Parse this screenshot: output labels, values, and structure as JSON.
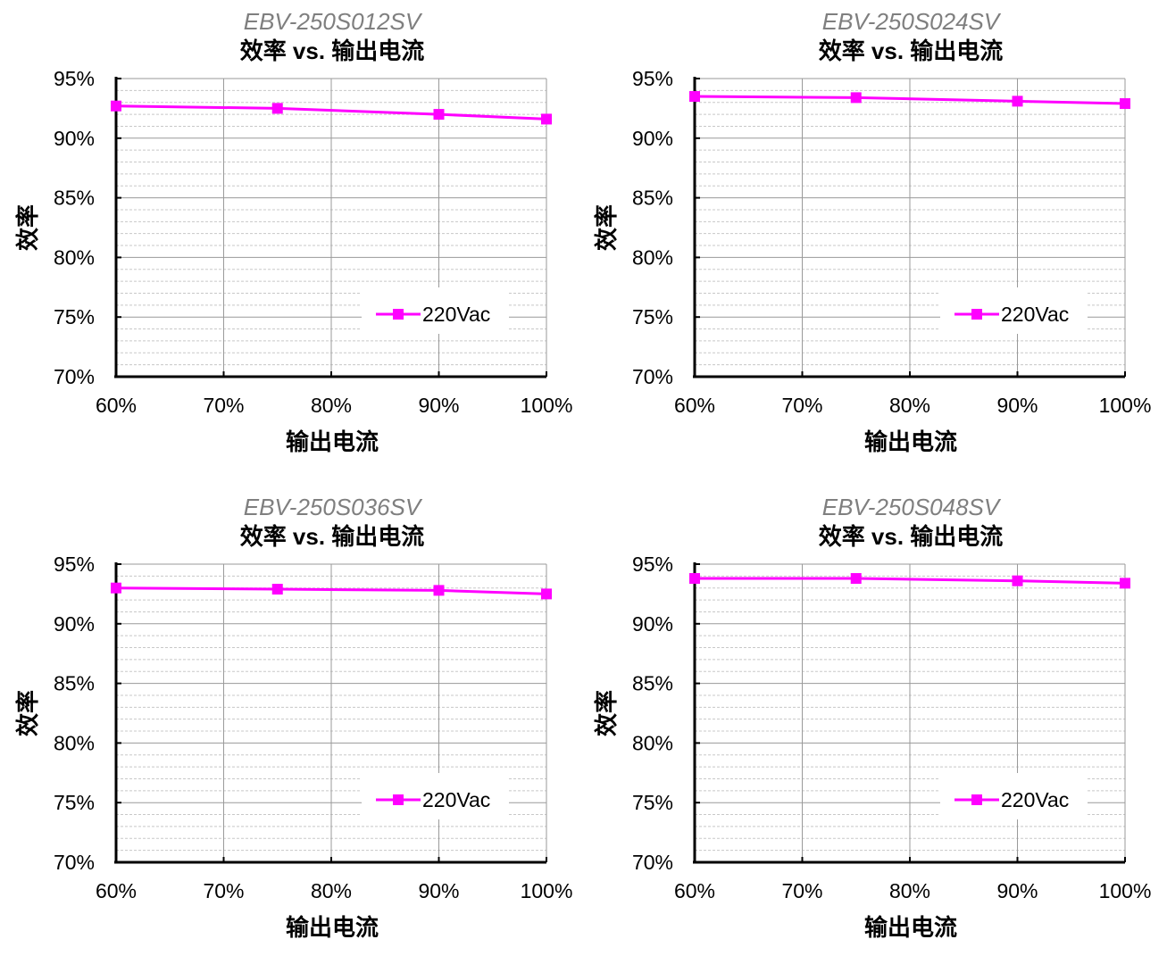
{
  "chart_data": [
    {
      "type": "line",
      "model": "EBV-250S012SV",
      "title": "效率 vs. 输出电流",
      "xlabel": "输出电流",
      "ylabel": "效率",
      "x_ticks": [
        "60%",
        "70%",
        "80%",
        "90%",
        "100%"
      ],
      "y_ticks": [
        "70%",
        "75%",
        "80%",
        "85%",
        "90%",
        "95%"
      ],
      "xlim": [
        60,
        100
      ],
      "ylim": [
        70,
        95
      ],
      "grid": true,
      "legend_position": "lower-right",
      "series": [
        {
          "name": "220Vac",
          "color": "#ff00ff",
          "marker": "square",
          "x": [
            60,
            75,
            90,
            100
          ],
          "y": [
            92.7,
            92.5,
            92.0,
            91.6
          ]
        }
      ]
    },
    {
      "type": "line",
      "model": "EBV-250S024SV",
      "title": "效率 vs. 输出电流",
      "xlabel": "输出电流",
      "ylabel": "效率",
      "x_ticks": [
        "60%",
        "70%",
        "80%",
        "90%",
        "100%"
      ],
      "y_ticks": [
        "70%",
        "75%",
        "80%",
        "85%",
        "90%",
        "95%"
      ],
      "xlim": [
        60,
        100
      ],
      "ylim": [
        70,
        95
      ],
      "grid": true,
      "legend_position": "lower-right",
      "series": [
        {
          "name": "220Vac",
          "color": "#ff00ff",
          "marker": "square",
          "x": [
            60,
            75,
            90,
            100
          ],
          "y": [
            93.5,
            93.4,
            93.1,
            92.9
          ]
        }
      ]
    },
    {
      "type": "line",
      "model": "EBV-250S036SV",
      "title": "效率 vs. 输出电流",
      "xlabel": "输出电流",
      "ylabel": "效率",
      "x_ticks": [
        "60%",
        "70%",
        "80%",
        "90%",
        "100%"
      ],
      "y_ticks": [
        "70%",
        "75%",
        "80%",
        "85%",
        "90%",
        "95%"
      ],
      "xlim": [
        60,
        100
      ],
      "ylim": [
        70,
        95
      ],
      "grid": true,
      "legend_position": "lower-right",
      "series": [
        {
          "name": "220Vac",
          "color": "#ff00ff",
          "marker": "square",
          "x": [
            60,
            75,
            90,
            100
          ],
          "y": [
            93.0,
            92.9,
            92.8,
            92.5
          ]
        }
      ]
    },
    {
      "type": "line",
      "model": "EBV-250S048SV",
      "title": "效率 vs. 输出电流",
      "xlabel": "输出电流",
      "ylabel": "效率",
      "x_ticks": [
        "60%",
        "70%",
        "80%",
        "90%",
        "100%"
      ],
      "y_ticks": [
        "70%",
        "75%",
        "80%",
        "85%",
        "90%",
        "95%"
      ],
      "xlim": [
        60,
        100
      ],
      "ylim": [
        70,
        95
      ],
      "grid": true,
      "legend_position": "lower-right",
      "series": [
        {
          "name": "220Vac",
          "color": "#ff00ff",
          "marker": "square",
          "x": [
            60,
            75,
            90,
            100
          ],
          "y": [
            93.8,
            93.8,
            93.6,
            93.4
          ]
        }
      ]
    }
  ]
}
